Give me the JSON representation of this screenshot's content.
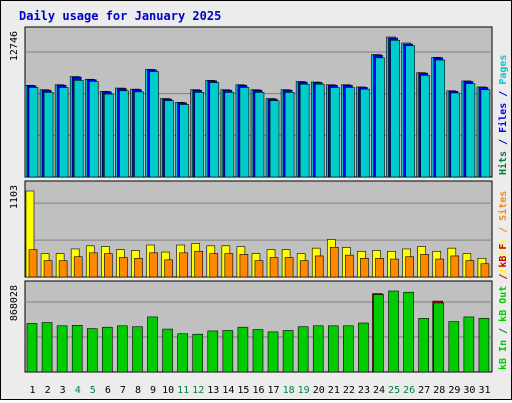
{
  "title": "Daily usage for January 2025",
  "colors": {
    "background": "#ececec",
    "panel": "#c0c0c0",
    "title": "#0000cc",
    "hits": "#00cccc",
    "files": "#0000ff",
    "pages": "#00cccc",
    "visits": "#ffff00",
    "sites": "#ff8800",
    "kb_in": "#00cc00",
    "kb_out": "#00aa00",
    "kbf": "#cc0000",
    "weekend_label": "#008040",
    "weekday_label": "#000000"
  },
  "right_labels": {
    "top": [
      {
        "text": "Hits",
        "color": "#008040"
      },
      {
        "text": " / ",
        "color": "#0000cc"
      },
      {
        "text": "Files",
        "color": "#0000ff"
      },
      {
        "text": " / ",
        "color": "#0000cc"
      },
      {
        "text": "Pages",
        "color": "#00cccc"
      }
    ],
    "middle": [
      {
        "text": "Visits",
        "color": "#ffff00"
      },
      {
        "text": " / ",
        "color": "#ff8800"
      },
      {
        "text": "Sites",
        "color": "#ff8800"
      }
    ],
    "bottom": [
      {
        "text": "kB In",
        "color": "#00cc00"
      },
      {
        "text": " / ",
        "color": "#008040"
      },
      {
        "text": "kB Out",
        "color": "#00cc00"
      },
      {
        "text": " / ",
        "color": "#cc0000"
      },
      {
        "text": "kB F",
        "color": "#cc0000"
      }
    ]
  },
  "chart_data": {
    "type": "bar",
    "title": "Daily usage for January 2025",
    "days": [
      "1",
      "2",
      "3",
      "4",
      "5",
      "6",
      "7",
      "8",
      "9",
      "10",
      "11",
      "12",
      "13",
      "14",
      "15",
      "16",
      "17",
      "18",
      "19",
      "20",
      "21",
      "22",
      "23",
      "24",
      "25",
      "26",
      "27",
      "28",
      "29",
      "30",
      "31"
    ],
    "weekend_days": [
      "4",
      "5",
      "11",
      "12",
      "18",
      "19",
      "25",
      "26"
    ],
    "panels": [
      {
        "name": "hits-files-pages",
        "ymax_label": "12746",
        "ymax": 12746,
        "series": [
          {
            "name": "Hits",
            "values": [
              8350,
              7950,
              8400,
              9150,
              8900,
              7800,
              8100,
              8000,
              9800,
              7150,
              6800,
              7950,
              8800,
              7950,
              8400,
              7950,
              7150,
              7950,
              8700,
              8650,
              8400,
              8400,
              8200,
              11150,
              12746,
              12200,
              9500,
              10900,
              7850,
              8750,
              8200
            ]
          },
          {
            "name": "Files",
            "values": [
              8300,
              7900,
              8350,
              9100,
              8850,
              7750,
              8050,
              7950,
              9750,
              7100,
              6750,
              7900,
              8750,
              7900,
              8350,
              7900,
              7100,
              7900,
              8650,
              8600,
              8350,
              8350,
              8150,
              11100,
              12650,
              12100,
              9450,
              10850,
              7800,
              8700,
              8150
            ]
          },
          {
            "name": "Pages",
            "values": [
              8150,
              7700,
              8150,
              8800,
              8700,
              7550,
              7850,
              7750,
              9600,
              6950,
              6600,
              7700,
              8600,
              7700,
              8150,
              7700,
              6950,
              7700,
              8450,
              8450,
              8150,
              8150,
              8000,
              10850,
              12450,
              11950,
              9250,
              10650,
              7650,
              8500,
              7950
            ]
          }
        ]
      },
      {
        "name": "visits-sites",
        "ymax_label": "1103",
        "ymax": 1103,
        "series": [
          {
            "name": "Visits",
            "values": [
              1103,
              300,
              300,
              360,
              400,
              390,
              350,
              340,
              410,
              320,
              410,
              430,
              400,
              400,
              390,
              300,
              350,
              350,
              300,
              370,
              480,
              380,
              330,
              340,
              330,
              360,
              390,
              330,
              370,
              300,
              240
            ]
          },
          {
            "name": "Sites",
            "values": [
              350,
              210,
              210,
              260,
              310,
              300,
              250,
              240,
              310,
              220,
              310,
              330,
              300,
              300,
              290,
              210,
              250,
              250,
              210,
              270,
              380,
              280,
              240,
              240,
              230,
              260,
              290,
              230,
              270,
              210,
              170
            ]
          }
        ]
      },
      {
        "name": "kb-in-out",
        "ymax_label": "868028",
        "ymax": 868028,
        "series": [
          {
            "name": "kB F",
            "values": [
              0,
              0,
              0,
              0,
              0,
              0,
              0,
              0,
              0,
              0,
              0,
              0,
              0,
              0,
              0,
              0,
              0,
              0,
              0,
              0,
              0,
              0,
              0,
              840000,
              0,
              0,
              0,
              760000,
              0,
              0,
              0
            ]
          },
          {
            "name": "kB In",
            "values": [
              520000,
              530000,
              495000,
              500000,
              465000,
              480000,
              495000,
              485000,
              590000,
              460000,
              410000,
              405000,
              440000,
              445000,
              480000,
              455000,
              430000,
              445000,
              485000,
              495000,
              495000,
              495000,
              525000,
              830000,
              868028,
              855000,
              575000,
              740000,
              540000,
              590000,
              575000
            ]
          }
        ]
      }
    ]
  }
}
